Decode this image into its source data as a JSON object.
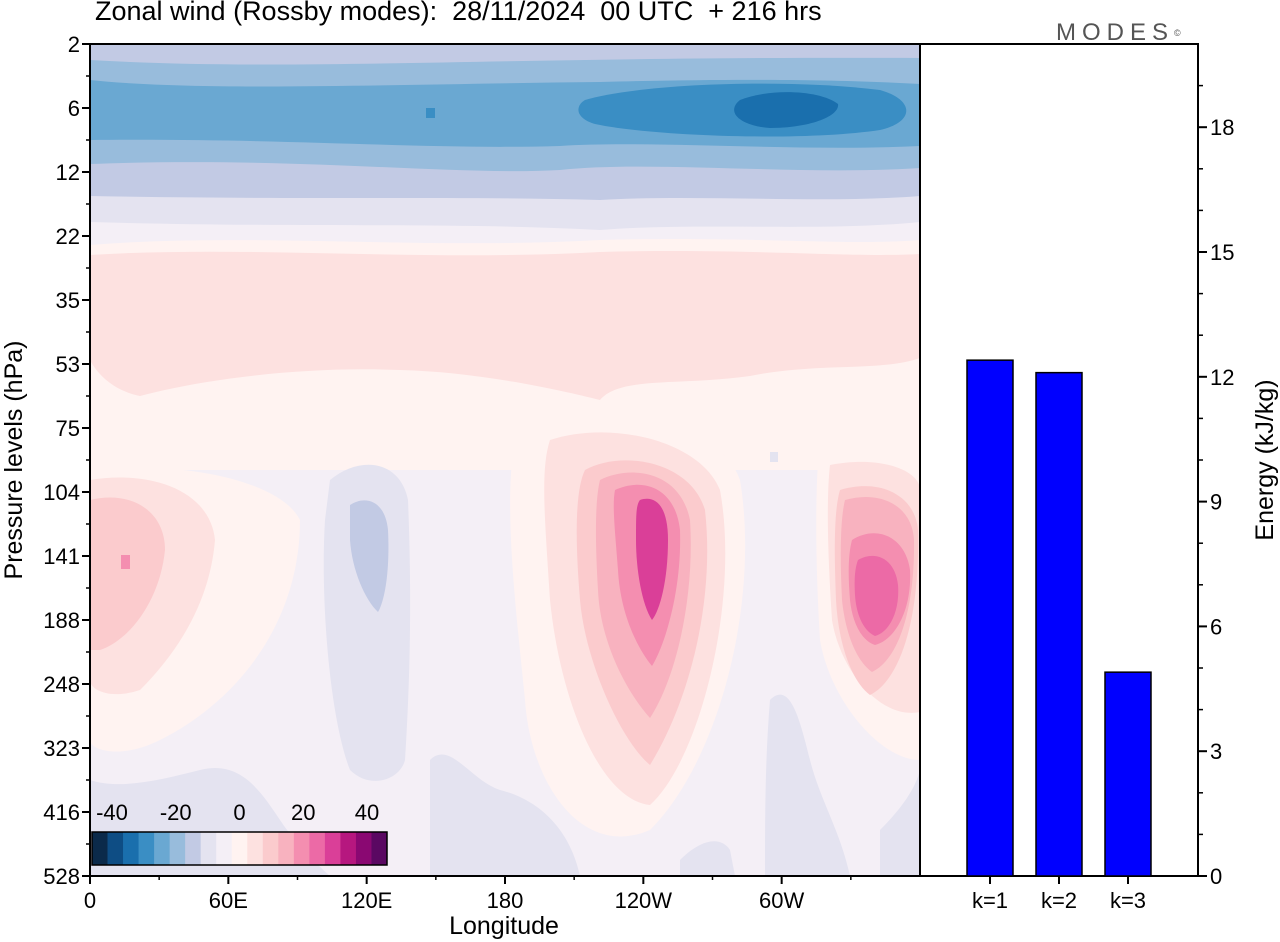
{
  "header": {
    "title": "Zonal wind (Rossby modes):  28/11/2024  00 UTC  + 216 hrs",
    "brand": "MODES",
    "brand_mark": "©"
  },
  "colorbar": {
    "labels": [
      "-40",
      "-20",
      "0",
      "20",
      "40"
    ],
    "colors": [
      "#0b2a4a",
      "#0e4d84",
      "#1a6fad",
      "#3a8ec4",
      "#6aa8d2",
      "#98bcdc",
      "#c2cae4",
      "#e4e3f0",
      "#f4eff6",
      "#fff3f1",
      "#fde1e0",
      "#fbcbcd",
      "#f8b2bf",
      "#f48eb0",
      "#ec6aa6",
      "#da3f98",
      "#b6177f",
      "#8a0872",
      "#5a0862"
    ]
  },
  "chart_data": [
    {
      "type": "heatmap",
      "title": "Zonal wind (Rossby modes):  28/11/2024  00 UTC  + 216 hrs",
      "xlabel": "Longitude",
      "ylabel": "Pressure levels (hPa)",
      "x_ticks": [
        "0",
        "60E",
        "120E",
        "180",
        "120W",
        "60W"
      ],
      "y_ticks": [
        "2",
        "6",
        "12",
        "22",
        "35",
        "53",
        "75",
        "104",
        "141",
        "188",
        "248",
        "323",
        "416",
        "528"
      ],
      "colorbar_range": [
        -40,
        40
      ],
      "features": [
        {
          "lon": 305,
          "level": "6",
          "value": -32
        },
        {
          "lon": 240,
          "level": "6",
          "value": -22
        },
        {
          "lon": 148,
          "level": "6",
          "value": -20
        },
        {
          "lon": 242,
          "level": "141",
          "value": 30
        },
        {
          "lon": 343,
          "level": "188",
          "value": 22
        },
        {
          "lon": 15,
          "level": "141",
          "value": 14
        },
        {
          "lon": 110,
          "level": "141",
          "value": -6
        }
      ]
    },
    {
      "type": "bar",
      "categories": [
        "k=1",
        "k=2",
        "k=3"
      ],
      "values": [
        12.4,
        12.1,
        4.9
      ],
      "ylabel": "Energy (kJ/kg)",
      "ylim": [
        0,
        20
      ],
      "y_ticks": [
        0,
        3,
        6,
        9,
        12,
        15,
        18
      ],
      "bar_color": "#0000ff"
    }
  ]
}
